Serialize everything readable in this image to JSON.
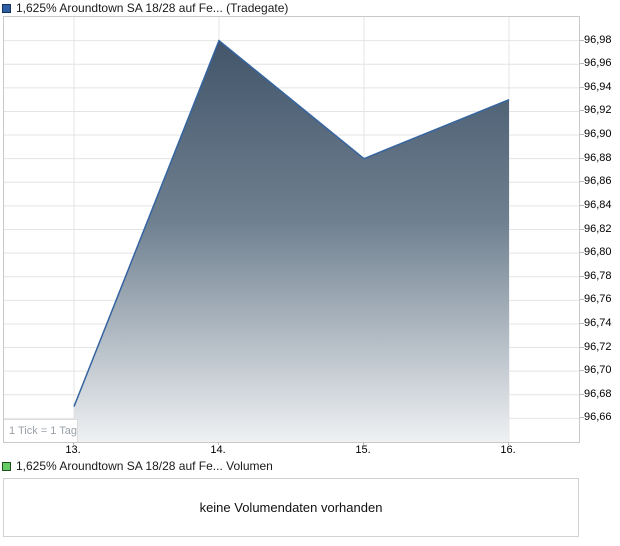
{
  "price_legend": {
    "swatch_color": "#2e5fa3"
  },
  "chart_data": {
    "type": "area",
    "title": "1,625% Aroundtown SA 18/28 auf Fe... (Tradegate)",
    "x_tick_labels": [
      "13.",
      "14.",
      "15.",
      "16."
    ],
    "values": [
      96.67,
      96.98,
      96.88,
      96.93
    ],
    "ylim": [
      96.64,
      97.0
    ],
    "y_tick_step": 0.02,
    "y_tick_labels": [
      "96,98",
      "96,96",
      "96,94",
      "96,92",
      "96,90",
      "96,88",
      "96,86",
      "96,84",
      "96,82",
      "96,80",
      "96,78",
      "96,76",
      "96,74",
      "96,72",
      "96,70",
      "96,68",
      "96,66"
    ],
    "tick_note": "1 Tick = 1 Tag",
    "grid": true,
    "legend_position": "top-left",
    "line_color": "#3565a0",
    "fill_gradient_stops": [
      {
        "offset": "0%",
        "color": "#42556a"
      },
      {
        "offset": "45%",
        "color": "#6f8090"
      },
      {
        "offset": "100%",
        "color": "#eff1f3"
      }
    ]
  },
  "volume_panel": {
    "swatch_color": "#66cc66",
    "legend_label": "1,625% Aroundtown SA 18/28 auf Fe... Volumen",
    "message": "keine Volumendaten vorhanden"
  }
}
